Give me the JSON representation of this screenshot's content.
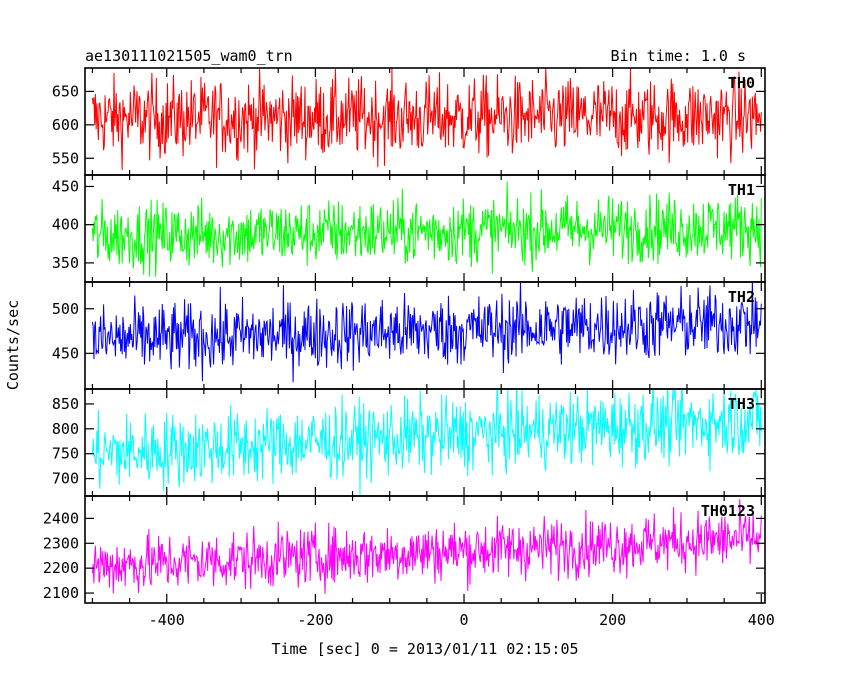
{
  "chart_data": {
    "type": "line",
    "title": "ae130111021505_wam0_trn",
    "bin_time": "Bin time: 1.0 s",
    "xlabel": "Time [sec] 0 = 2013/01/11 02:15:05",
    "ylabel": "Counts/sec",
    "xlim": [
      -510,
      405
    ],
    "x_range": [
      -500,
      400
    ],
    "x_ticks": [
      -400,
      -200,
      0,
      200,
      400
    ],
    "grid": false,
    "panels": [
      {
        "name": "TH0",
        "color": "#ff0000",
        "ylim": [
          525,
          685
        ],
        "yticks": [
          550,
          600,
          650
        ],
        "mean_start": 610,
        "mean_end": 612,
        "amp": 30
      },
      {
        "name": "TH1",
        "color": "#00ff00",
        "ylim": [
          325,
          465
        ],
        "yticks": [
          350,
          400,
          450
        ],
        "mean_start": 385,
        "mean_end": 398,
        "amp": 22
      },
      {
        "name": "TH2",
        "color": "#0000ff",
        "ylim": [
          410,
          530
        ],
        "yticks": [
          450,
          500
        ],
        "mean_start": 465,
        "mean_end": 485,
        "amp": 20
      },
      {
        "name": "TH3",
        "color": "#00ffff",
        "ylim": [
          665,
          880
        ],
        "yticks": [
          700,
          750,
          800,
          850
        ],
        "mean_start": 750,
        "mean_end": 820,
        "amp": 38
      },
      {
        "name": "TH0123",
        "color": "#ff00ff",
        "ylim": [
          2060,
          2490
        ],
        "yticks": [
          2100,
          2200,
          2300,
          2400
        ],
        "mean_start": 2210,
        "mean_end": 2320,
        "amp": 60
      }
    ]
  }
}
